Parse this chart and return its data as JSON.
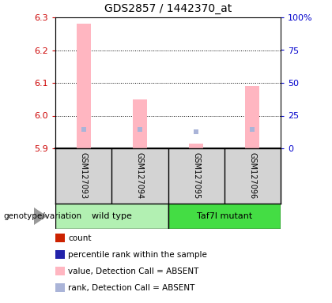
{
  "title": "GDS2857 / 1442370_at",
  "samples": [
    "GSM127093",
    "GSM127094",
    "GSM127095",
    "GSM127096"
  ],
  "ylim": [
    5.9,
    6.3
  ],
  "yticks": [
    5.9,
    6.0,
    6.1,
    6.2,
    6.3
  ],
  "right_yticks": [
    0,
    25,
    50,
    75,
    100
  ],
  "right_ylabels": [
    "0",
    "25",
    "50",
    "75",
    "100%"
  ],
  "bar_color_absent": "#ffb6c1",
  "rank_color_absent": "#aab4d8",
  "values_absent": [
    6.28,
    6.05,
    5.915,
    6.09
  ],
  "ranks_absent": [
    5.957,
    5.957,
    5.951,
    5.957
  ],
  "base_value": 5.9,
  "ylabel_color": "#cc0000",
  "right_ylabel_color": "#0000cc",
  "legend_items": [
    {
      "label": "count",
      "color": "#cc2200"
    },
    {
      "label": "percentile rank within the sample",
      "color": "#2222aa"
    },
    {
      "label": "value, Detection Call = ABSENT",
      "color": "#ffb6c1"
    },
    {
      "label": "rank, Detection Call = ABSENT",
      "color": "#aab4d8"
    }
  ],
  "bar_width": 0.25,
  "background_color": "#ffffff",
  "sample_box_color": "#d3d3d3",
  "wt_color": "#b2f0b2",
  "mut_color": "#44dd44",
  "genotype_label": "genotype/variation"
}
